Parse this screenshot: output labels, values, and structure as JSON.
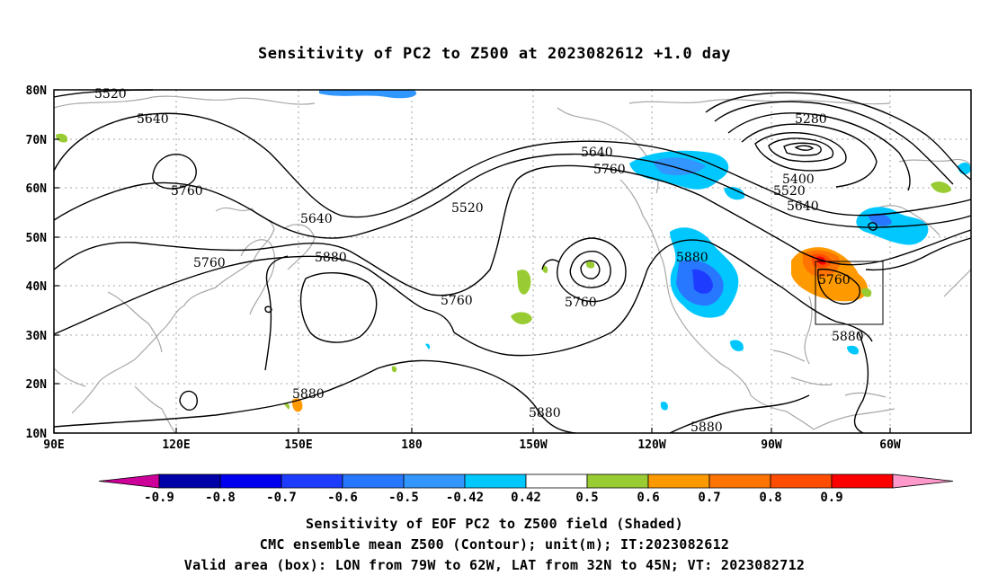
{
  "title": "Sensitivity of PC2 to Z500 at 2023082612 +1.0 day",
  "lat_labels": [
    "80N",
    "70N",
    "60N",
    "50N",
    "40N",
    "30N",
    "20N",
    "10N"
  ],
  "lon_labels": [
    "90E",
    "120E",
    "150E",
    "180",
    "150W",
    "120W",
    "90W",
    "60W"
  ],
  "contour_labels": [
    "5520",
    "5640",
    "5760",
    "5640",
    "5760",
    "5880",
    "5880",
    "5640",
    "5760",
    "5520",
    "5760",
    "5760",
    "5280",
    "5400",
    "5520",
    "5640",
    "5880",
    "5760",
    "5880",
    "5880",
    "5880"
  ],
  "colorbar": {
    "labels": [
      "-0.9",
      "-0.8",
      "-0.7",
      "-0.6",
      "-0.5",
      "-0.42",
      "0.42",
      "0.5",
      "0.6",
      "0.7",
      "0.8",
      "0.9"
    ],
    "colors": [
      "#cc0099",
      "#0000a8",
      "#0000ee",
      "#1e3cff",
      "#2878ff",
      "#3296ff",
      "#00c8ff",
      "#ffffff",
      "#99cc33",
      "#ff9900",
      "#ff7300",
      "#ff4d00",
      "#ff0000",
      "#ff99cc"
    ]
  },
  "captions": {
    "line1": "Sensitivity of EOF PC2 to Z500 field (Shaded)",
    "line2": "CMC ensemble mean Z500 (Contour); unit(m); IT:2023082612",
    "line3": "Valid area (box): LON from 79W to 62W, LAT from 32N to 45N; VT: 2023082712"
  }
}
